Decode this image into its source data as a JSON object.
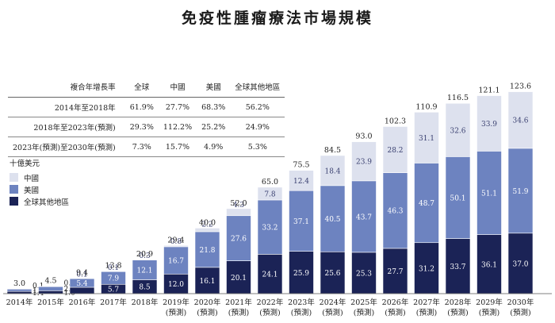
{
  "title": "免疫性腫瘤療法市場規模",
  "cagr_table": {
    "headers": [
      "複合年增長率",
      "全球",
      "中國",
      "美國",
      "全球其他地區"
    ],
    "rows": [
      [
        "2014年至2018年",
        "61.9%",
        "27.7%",
        "68.3%",
        "56.2%"
      ],
      [
        "2018年至2023年(預測)",
        "29.3%",
        "112.2%",
        "25.2%",
        "24.9%"
      ],
      [
        "2023年(預測)至2030年(預測)",
        "7.3%",
        "15.7%",
        "4.9%",
        "5.3%"
      ]
    ]
  },
  "legend": {
    "unit": "十億美元",
    "items": [
      {
        "label": "中國",
        "color": "#dde1ee"
      },
      {
        "label": "美國",
        "color": "#6d83c0"
      },
      {
        "label": "全球其他地區",
        "color": "#1b2356"
      }
    ]
  },
  "chart_data": {
    "type": "bar",
    "stacked": true,
    "unit": "十億美元",
    "categories": [
      [
        "2014年"
      ],
      [
        "2015年"
      ],
      [
        "2016年"
      ],
      [
        "2017年"
      ],
      [
        "2018年"
      ],
      [
        "2019年",
        "(預測)"
      ],
      [
        "2020年",
        "(預測)"
      ],
      [
        "2021年",
        "(預測)"
      ],
      [
        "2022年",
        "(預測)"
      ],
      [
        "2023年",
        "(預測)"
      ],
      [
        "2024年",
        "(預測)"
      ],
      [
        "2025年",
        "(預測)"
      ],
      [
        "2026年",
        "(預測)"
      ],
      [
        "2027年",
        "(預測)"
      ],
      [
        "2028年",
        "(預測)"
      ],
      [
        "2029年",
        "(預測)"
      ],
      [
        "2030年",
        "(預測)"
      ]
    ],
    "series": [
      {
        "name": "全球其他地區",
        "color": "#1b2356",
        "values": [
          1.4,
          1.8,
          3.9,
          5.7,
          8.5,
          12.0,
          16.1,
          20.1,
          24.1,
          25.9,
          25.6,
          25.3,
          27.7,
          31.2,
          33.7,
          36.1,
          37.0
        ]
      },
      {
        "name": "美國",
        "color": "#6d83c0",
        "values": [
          1.5,
          2.6,
          5.4,
          7.9,
          12.1,
          16.7,
          21.8,
          27.6,
          33.2,
          37.1,
          40.5,
          43.7,
          46.3,
          48.7,
          50.1,
          51.1,
          51.9
        ]
      },
      {
        "name": "中國",
        "color": "#dde1ee",
        "values": [
          0.1,
          0.1,
          0.1,
          0.1,
          0.3,
          0.8,
          2.2,
          4.3,
          7.8,
          12.4,
          18.4,
          23.9,
          28.2,
          31.1,
          32.6,
          33.9,
          34.6
        ]
      }
    ],
    "totals": [
      3.0,
      4.5,
      9.4,
      13.8,
      20.9,
      29.4,
      40.0,
      52.0,
      65.0,
      75.5,
      84.5,
      93.0,
      102.3,
      110.9,
      116.5,
      121.1,
      123.6
    ],
    "ylim": [
      0,
      130
    ]
  }
}
